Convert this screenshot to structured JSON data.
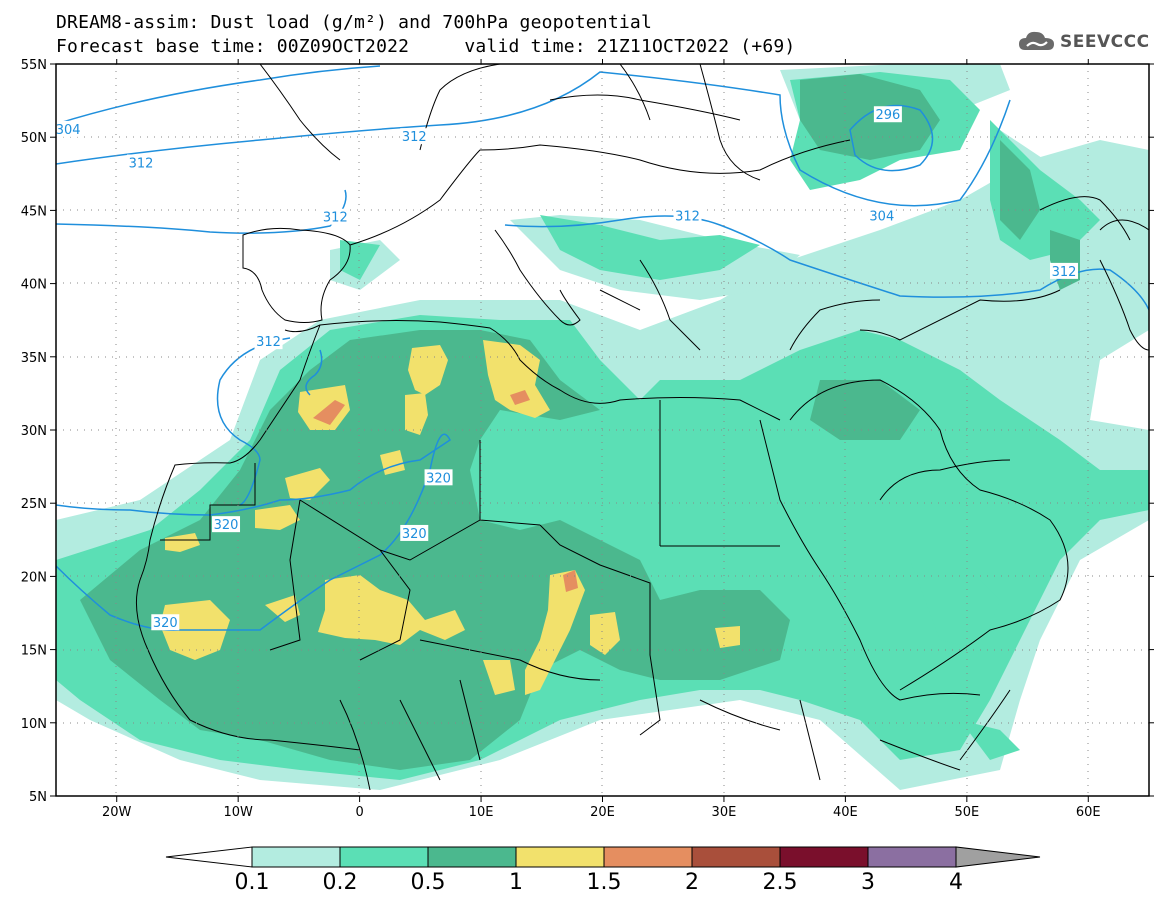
{
  "header": {
    "title_line1": "DREAM8-assim: Dust load (g/m²) and 700hPa geopotential",
    "title_line2": "Forecast base time: 00Z09OCT2022     valid time: 21Z11OCT2022 (+69)",
    "logo_text": "SEEVCCC"
  },
  "map": {
    "lon_range": [
      -25,
      65
    ],
    "lat_range": [
      5,
      55
    ],
    "x_ticks": [
      {
        "lon": -20,
        "label": "20W"
      },
      {
        "lon": -10,
        "label": "10W"
      },
      {
        "lon": 0,
        "label": "0"
      },
      {
        "lon": 10,
        "label": "10E"
      },
      {
        "lon": 20,
        "label": "20E"
      },
      {
        "lon": 30,
        "label": "30E"
      },
      {
        "lon": 40,
        "label": "40E"
      },
      {
        "lon": 50,
        "label": "50E"
      },
      {
        "lon": 60,
        "label": "60E"
      }
    ],
    "y_ticks": [
      {
        "lat": 55,
        "label": "55N"
      },
      {
        "lat": 50,
        "label": "50N"
      },
      {
        "lat": 45,
        "label": "45N"
      },
      {
        "lat": 40,
        "label": "40N"
      },
      {
        "lat": 35,
        "label": "35N"
      },
      {
        "lat": 30,
        "label": "30N"
      },
      {
        "lat": 25,
        "label": "25N"
      },
      {
        "lat": 20,
        "label": "20N"
      },
      {
        "lat": 15,
        "label": "15N"
      },
      {
        "lat": 10,
        "label": "10N"
      },
      {
        "lat": 5,
        "label": "5N"
      }
    ],
    "contour_labels": [
      {
        "text": "304",
        "lon": -24,
        "lat": 50.5
      },
      {
        "text": "312",
        "lon": -18,
        "lat": 48.2
      },
      {
        "text": "312",
        "lon": 4.5,
        "lat": 50.0
      },
      {
        "text": "312",
        "lon": -2,
        "lat": 44.5
      },
      {
        "text": "296",
        "lon": 43.5,
        "lat": 51.5
      },
      {
        "text": "304",
        "lon": 43,
        "lat": 44.6
      },
      {
        "text": "312",
        "lon": 27,
        "lat": 44.6
      },
      {
        "text": "312",
        "lon": 58,
        "lat": 40.8
      },
      {
        "text": "312",
        "lon": -7.5,
        "lat": 36.0
      },
      {
        "text": "320",
        "lon": 6.5,
        "lat": 26.7
      },
      {
        "text": "320",
        "lon": -11,
        "lat": 23.5
      },
      {
        "text": "320",
        "lon": 4.5,
        "lat": 22.9
      },
      {
        "text": "320",
        "lon": -16,
        "lat": 16.8
      }
    ],
    "colors": {
      "level_0_1": "#b3ece0",
      "level_0_2": "#5bdfb5",
      "level_0_5": "#4bb88e",
      "level_1": "#f2e16c",
      "level_1_5": "#e58e60",
      "level_2": "#a94f3b",
      "level_2_5": "#7a0f2c",
      "level_3": "#8b6fa1",
      "level_4": "#a0a0a0",
      "contour": "#1f8fdc",
      "border": "#000000"
    }
  },
  "colorbar": {
    "labels": [
      "0.1",
      "0.2",
      "0.5",
      "1",
      "1.5",
      "2",
      "2.5",
      "3",
      "4"
    ],
    "colors": [
      "#b3ece0",
      "#5bdfb5",
      "#4bb88e",
      "#f2e16c",
      "#e58e60",
      "#a94f3b",
      "#7a0f2c",
      "#8b6fa1"
    ],
    "under_color": "#ffffff",
    "over_color": "#a0a0a0"
  }
}
